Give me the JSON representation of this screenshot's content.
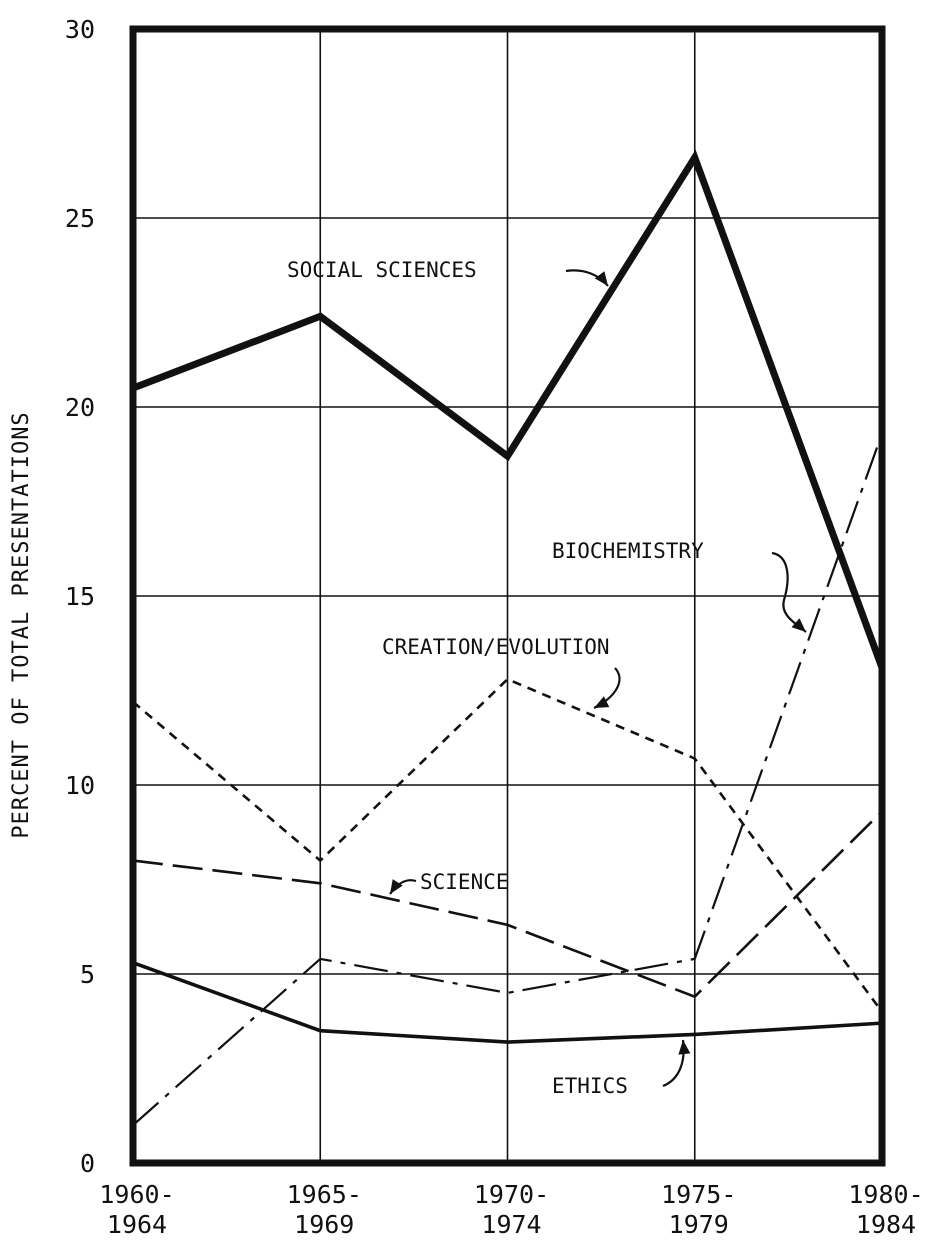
{
  "chart_data": {
    "type": "line",
    "title": "",
    "xlabel": "",
    "ylabel": "PERCENT OF TOTAL PRESENTATIONS",
    "ylim": [
      0,
      30
    ],
    "yticks": [
      "0",
      "5",
      "10",
      "15",
      "20",
      "25",
      "30"
    ],
    "categories": [
      [
        "1960-",
        "1964"
      ],
      [
        "1965-",
        "1969"
      ],
      [
        "1970-",
        "1974"
      ],
      [
        "1975-",
        "1979"
      ],
      [
        "1980-",
        "1984"
      ]
    ],
    "grid": true,
    "legend": "none",
    "series": [
      {
        "name": "SOCIAL SCIENCES",
        "values": [
          20.5,
          22.4,
          18.7,
          26.6,
          13.1
        ],
        "style": "thick-solid"
      },
      {
        "name": "BIOCHEMISTRY",
        "values": [
          1.0,
          5.4,
          4.5,
          5.4,
          19.3
        ],
        "style": "dash-dot"
      },
      {
        "name": "CREATION/EVOLUTION",
        "values": [
          12.2,
          8.0,
          12.8,
          10.7,
          4.0
        ],
        "style": "short-dash"
      },
      {
        "name": "SCIENCE",
        "values": [
          8.0,
          7.4,
          6.3,
          4.4,
          9.3
        ],
        "style": "long-dash"
      },
      {
        "name": "ETHICS",
        "values": [
          5.3,
          3.5,
          3.2,
          3.4,
          3.7
        ],
        "style": "solid"
      }
    ],
    "colors": {
      "ink": "#111111",
      "background": "#ffffff"
    }
  }
}
